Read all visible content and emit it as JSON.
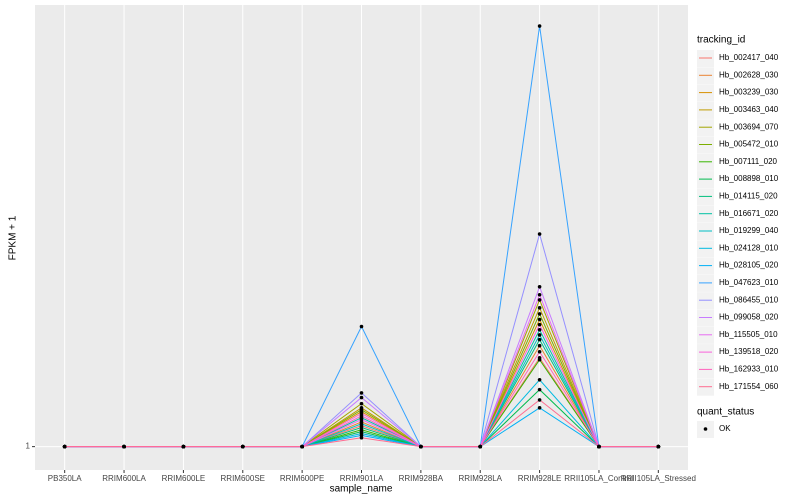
{
  "chart_data": {
    "type": "line",
    "x_label": "sample_name",
    "y_label": "FPKM + 1",
    "categories": [
      "PB350LA",
      "RRIM600LA",
      "RRIM600LE",
      "RRIM600SE",
      "RRIM600PE",
      "RRIM901LA",
      "RRIM928BA",
      "RRIM928LA",
      "RRIM928LE",
      "RRII105LA_Control",
      "RRII105LA_Stressed"
    ],
    "ylim": [
      0.5,
      10.45
    ],
    "yticks": [
      1
    ],
    "grid": true,
    "legend_title": "tracking_id",
    "point_legend": {
      "title": "quant_status",
      "levels": [
        "OK"
      ]
    },
    "series": [
      {
        "name": "Hb_002417_040",
        "color": "#F8766D",
        "values": [
          1,
          1,
          1,
          1,
          1,
          1.45,
          1,
          1,
          2.9,
          1,
          1
        ]
      },
      {
        "name": "Hb_002628_030",
        "color": "#EA8331",
        "values": [
          1,
          1,
          1,
          1,
          1,
          1.53,
          1,
          1,
          3.16,
          1,
          1
        ]
      },
      {
        "name": "Hb_003239_030",
        "color": "#D89000",
        "values": [
          1,
          1,
          1,
          1,
          1,
          1.75,
          1,
          1,
          3.72,
          1,
          1
        ]
      },
      {
        "name": "Hb_003463_040",
        "color": "#C09B00",
        "values": [
          1,
          1,
          1,
          1,
          1,
          1.83,
          1,
          1,
          3.97,
          1,
          1
        ]
      },
      {
        "name": "Hb_003694_070",
        "color": "#A3A500",
        "values": [
          1,
          1,
          1,
          1,
          1,
          1.92,
          1,
          1,
          4.14,
          1,
          1
        ]
      },
      {
        "name": "Hb_005472_010",
        "color": "#7CAE00",
        "values": [
          1,
          1,
          1,
          1,
          1,
          1.79,
          1,
          1,
          3.84,
          1,
          1
        ]
      },
      {
        "name": "Hb_007111_020",
        "color": "#39B600",
        "values": [
          1,
          1,
          1,
          1,
          1,
          1.36,
          1,
          1,
          2.86,
          1,
          1
        ]
      },
      {
        "name": "Hb_008898_010",
        "color": "#00BB4E",
        "values": [
          1,
          1,
          1,
          1,
          1,
          1.32,
          1,
          1,
          2.22,
          1,
          1
        ]
      },
      {
        "name": "Hb_014115_020",
        "color": "#00BF7D",
        "values": [
          1,
          1,
          1,
          1,
          1,
          1.41,
          1,
          1,
          3.29,
          1,
          1
        ]
      },
      {
        "name": "Hb_016671_020",
        "color": "#00C1A3",
        "values": [
          1,
          1,
          1,
          1,
          1,
          1.62,
          1,
          1,
          3.5,
          1,
          1
        ]
      },
      {
        "name": "Hb_019299_040",
        "color": "#00BFC4",
        "values": [
          1,
          1,
          1,
          1,
          1,
          1.49,
          1,
          1,
          3.39,
          1,
          1
        ]
      },
      {
        "name": "Hb_024128_010",
        "color": "#00BAE0",
        "values": [
          1,
          1,
          1,
          1,
          1,
          1.28,
          1,
          1,
          2.43,
          1,
          1
        ]
      },
      {
        "name": "Hb_028105_020",
        "color": "#00B0F6",
        "values": [
          1,
          1,
          1,
          1,
          1,
          1.24,
          1,
          1,
          1.83,
          1,
          1
        ]
      },
      {
        "name": "Hb_047623_010",
        "color": "#35A2FF",
        "values": [
          1,
          1,
          1,
          1,
          1,
          3.57,
          1,
          1,
          10.0,
          1,
          1
        ]
      },
      {
        "name": "Hb_086455_010",
        "color": "#9590FF",
        "values": [
          1,
          1,
          1,
          1,
          1,
          2.15,
          1,
          1,
          5.55,
          1,
          1
        ]
      },
      {
        "name": "Hb_099058_020",
        "color": "#C77CFF",
        "values": [
          1,
          1,
          1,
          1,
          1,
          2.05,
          1,
          1,
          4.42,
          1,
          1
        ]
      },
      {
        "name": "Hb_115505_010",
        "color": "#E76BF3",
        "values": [
          1,
          1,
          1,
          1,
          1,
          1.58,
          1,
          1,
          4.25,
          1,
          1
        ]
      },
      {
        "name": "Hb_139518_020",
        "color": "#FA62DB",
        "values": [
          1,
          1,
          1,
          1,
          1,
          1.71,
          1,
          1,
          3.61,
          1,
          1
        ]
      },
      {
        "name": "Hb_162933_010",
        "color": "#FF62BC",
        "values": [
          1,
          1,
          1,
          1,
          1,
          1.66,
          1,
          1,
          3.03,
          1,
          1
        ]
      },
      {
        "name": "Hb_171554_060",
        "color": "#FF6C91",
        "values": [
          1,
          1,
          1,
          1,
          1,
          1.19,
          1,
          1,
          2.0,
          1,
          1
        ]
      }
    ]
  }
}
